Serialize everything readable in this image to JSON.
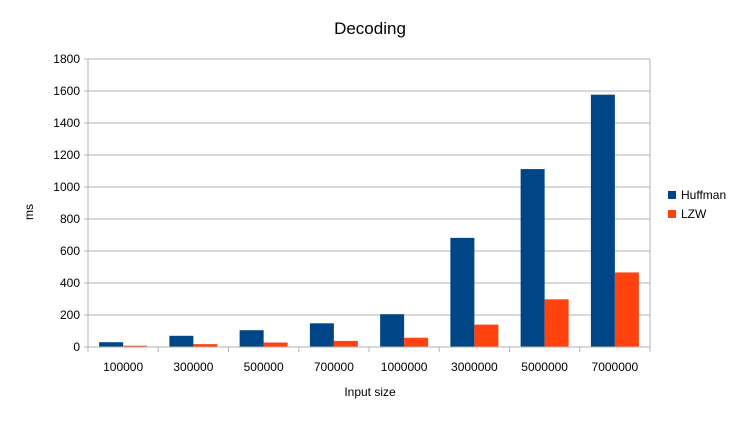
{
  "chart_data": {
    "type": "bar",
    "title": "Decoding",
    "xlabel": "Input size",
    "ylabel": "ms",
    "categories": [
      "100000",
      "300000",
      "500000",
      "700000",
      "1000000",
      "3000000",
      "5000000",
      "7000000"
    ],
    "series": [
      {
        "name": "Huffman",
        "color": "#004586",
        "values": [
          30,
          70,
          105,
          148,
          205,
          682,
          1112,
          1577
        ]
      },
      {
        "name": "LZW",
        "color": "#ff420e",
        "values": [
          8,
          18,
          28,
          38,
          58,
          140,
          298,
          466
        ]
      }
    ],
    "ylim": [
      0,
      1800
    ],
    "yticks": [
      0,
      200,
      400,
      600,
      800,
      1000,
      1200,
      1400,
      1600,
      1800
    ],
    "grid": true,
    "legend": "right"
  }
}
